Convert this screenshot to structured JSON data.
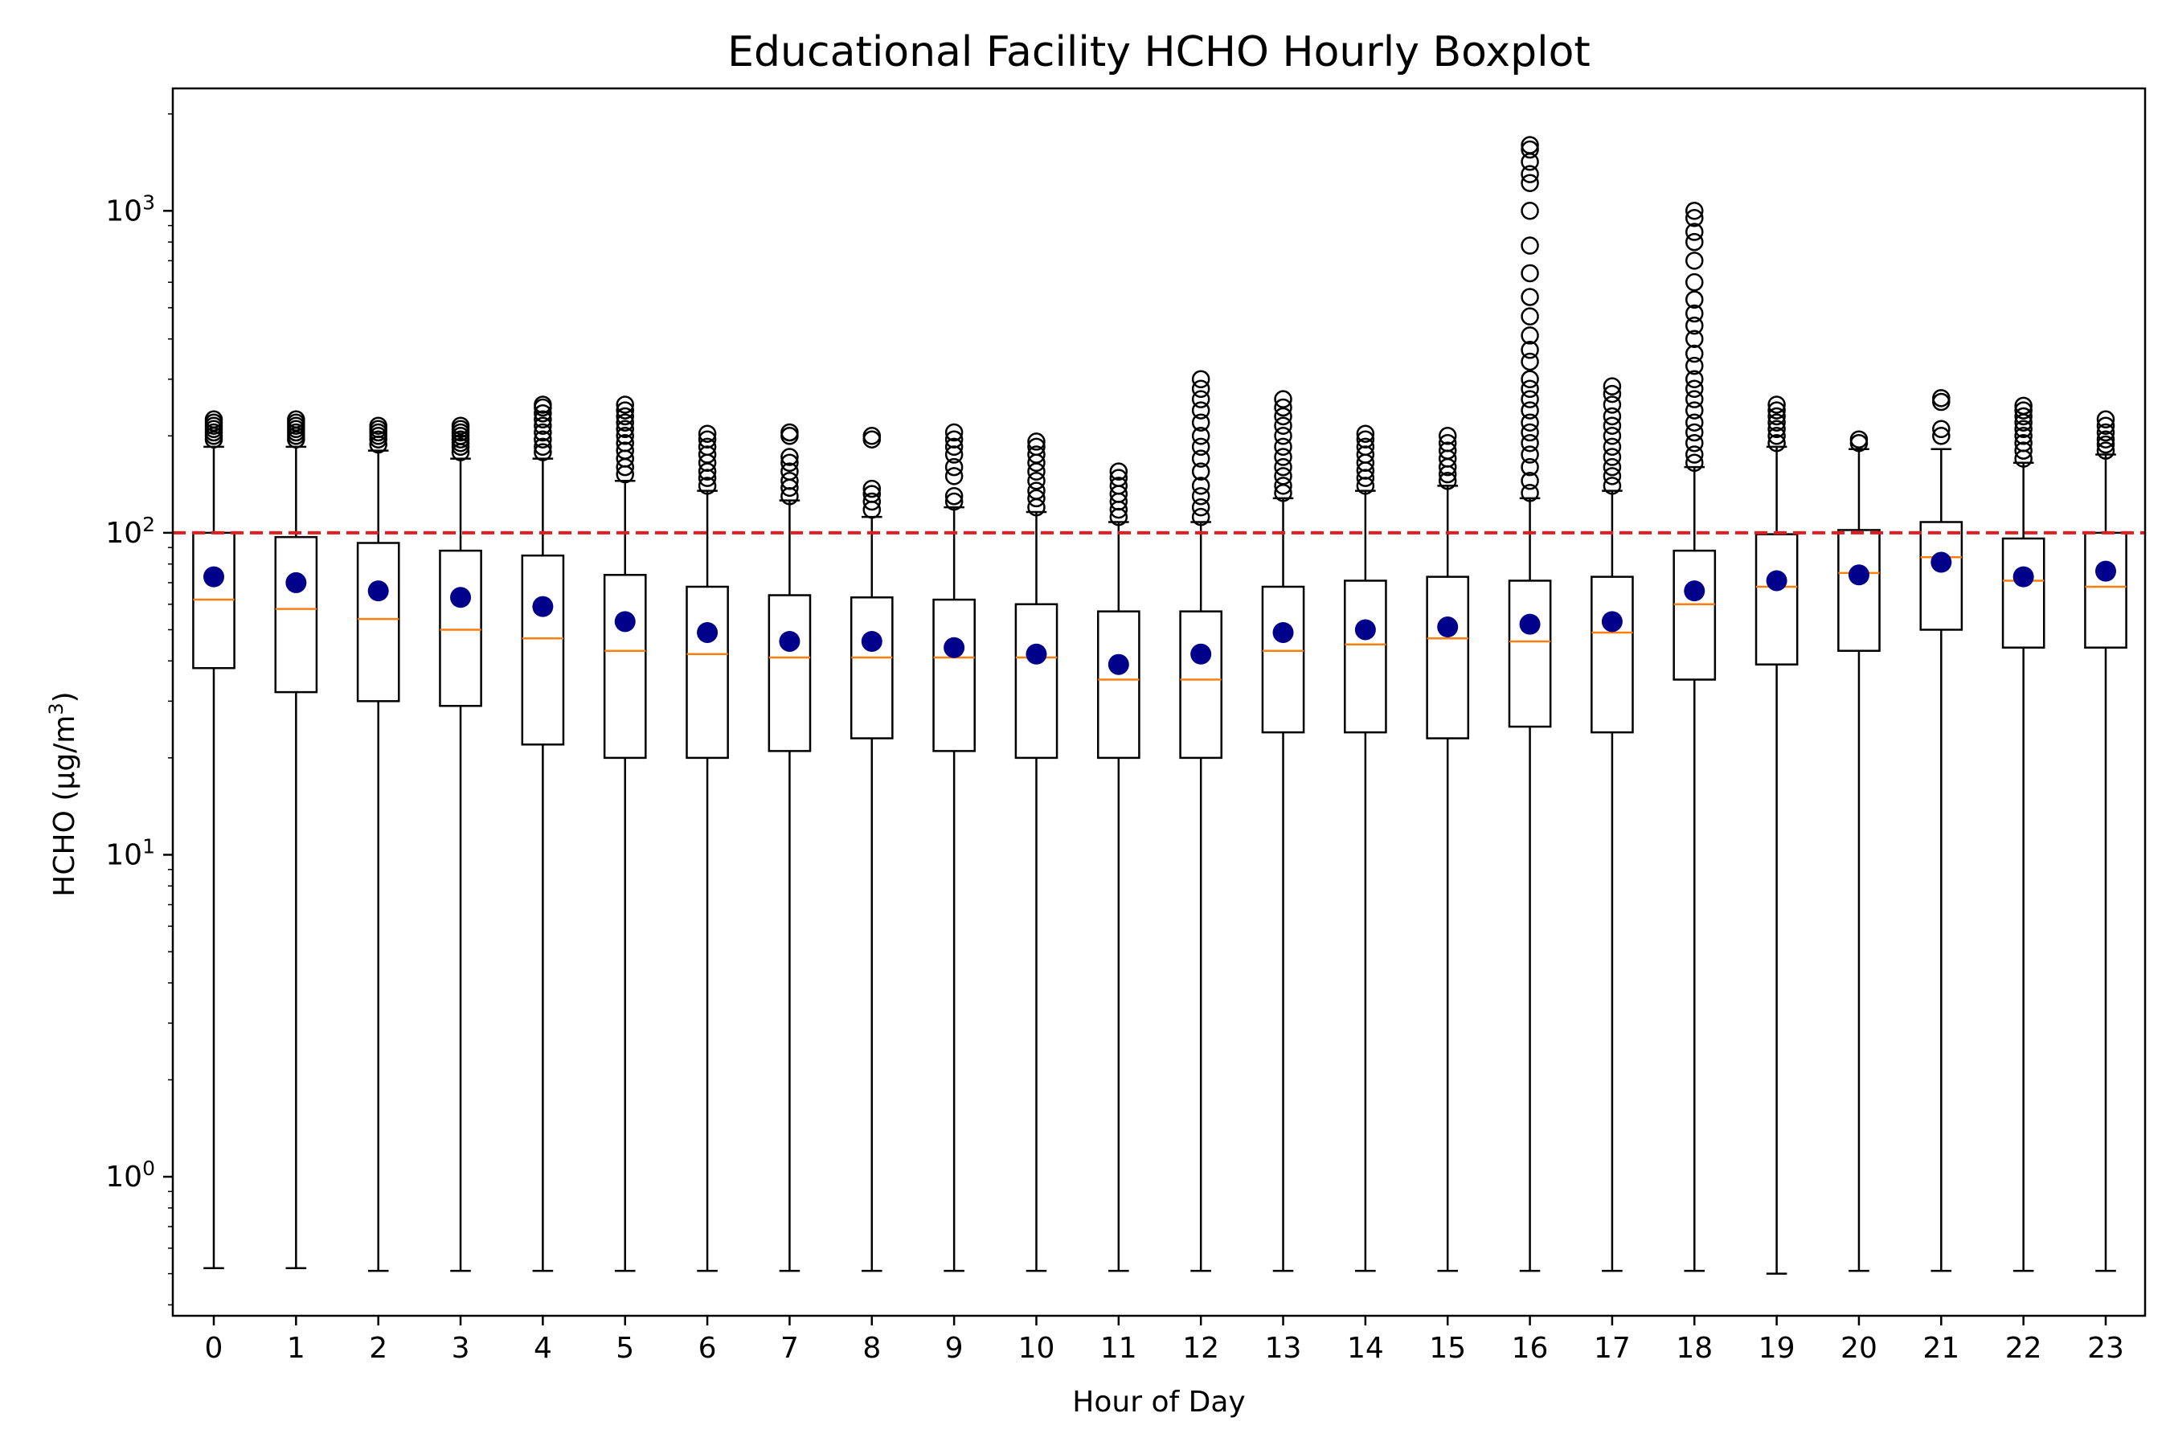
{
  "chart_data": {
    "type": "boxplot",
    "title": "Educational Facility HCHO Hourly Boxplot",
    "xlabel": "Hour of Day",
    "ylabel": "HCHO (μg/m³)",
    "ylabel_parts": {
      "base": "HCHO (μg/m",
      "sup": "3",
      "close": ")"
    },
    "yscale": "log",
    "ylim": [
      0.37,
      2400
    ],
    "y_ticks": [
      {
        "value": 1,
        "base": "10",
        "exp": "0"
      },
      {
        "value": 10,
        "base": "10",
        "exp": "1"
      },
      {
        "value": 100,
        "base": "10",
        "exp": "2"
      },
      {
        "value": 1000,
        "base": "10",
        "exp": "3"
      }
    ],
    "reference_line": {
      "value": 100,
      "color": "#e41a1c",
      "style": "dashed"
    },
    "colors": {
      "median": "#ff7f0e",
      "mean": "#00008b",
      "box": "#000000",
      "outlier": "#000000"
    },
    "categories": [
      "0",
      "1",
      "2",
      "3",
      "4",
      "5",
      "6",
      "7",
      "8",
      "9",
      "10",
      "11",
      "12",
      "13",
      "14",
      "15",
      "16",
      "17",
      "18",
      "19",
      "20",
      "21",
      "22",
      "23"
    ],
    "series": [
      {
        "values": [
          {
            "whislo": 0.52,
            "q1": 38,
            "med": 62,
            "q3": 100,
            "whishi": 185,
            "mean": 73,
            "fliers": [
              195,
              200,
              205,
              210,
              215,
              220,
              225
            ]
          },
          {
            "whislo": 0.52,
            "q1": 32,
            "med": 58,
            "q3": 97,
            "whishi": 185,
            "mean": 70,
            "fliers": [
              195,
              200,
              205,
              210,
              215,
              220,
              225
            ]
          },
          {
            "whislo": 0.51,
            "q1": 30,
            "med": 54,
            "q3": 93,
            "whishi": 180,
            "mean": 66,
            "fliers": [
              188,
              195,
              200,
              205,
              210,
              215
            ]
          },
          {
            "whislo": 0.51,
            "q1": 29,
            "med": 50,
            "q3": 88,
            "whishi": 170,
            "mean": 63,
            "fliers": [
              178,
              185,
              190,
              195,
              200,
              205,
              210,
              215
            ]
          },
          {
            "whislo": 0.51,
            "q1": 22,
            "med": 47,
            "q3": 85,
            "whishi": 170,
            "mean": 59,
            "fliers": [
              178,
              185,
              195,
              205,
              215,
              225,
              235,
              245,
              250
            ]
          },
          {
            "whislo": 0.51,
            "q1": 20,
            "med": 43,
            "q3": 74,
            "whishi": 145,
            "mean": 53,
            "fliers": [
              152,
              160,
              170,
              180,
              190,
              200,
              210,
              220,
              230,
              240,
              250
            ]
          },
          {
            "whislo": 0.51,
            "q1": 20,
            "med": 42,
            "q3": 68,
            "whishi": 135,
            "mean": 49,
            "fliers": [
              140,
              148,
              155,
              165,
              175,
              185,
              195,
              203
            ]
          },
          {
            "whislo": 0.51,
            "q1": 21,
            "med": 41,
            "q3": 64,
            "whishi": 126,
            "mean": 46,
            "fliers": [
              130,
              138,
              145,
              155,
              165,
              172,
              200,
              205
            ]
          },
          {
            "whislo": 0.51,
            "q1": 23,
            "med": 41,
            "q3": 63,
            "whishi": 112,
            "mean": 46,
            "fliers": [
              118,
              125,
              132,
              137,
              195,
              200
            ]
          },
          {
            "whislo": 0.51,
            "q1": 21,
            "med": 41,
            "q3": 62,
            "whishi": 120,
            "mean": 44,
            "fliers": [
              125,
              130,
              150,
              160,
              175,
              185,
              195,
              205
            ]
          },
          {
            "whislo": 0.51,
            "q1": 20,
            "med": 41,
            "q3": 60,
            "whishi": 116,
            "mean": 42,
            "fliers": [
              120,
              128,
              135,
              145,
              155,
              165,
              175,
              185,
              192
            ]
          },
          {
            "whislo": 0.51,
            "q1": 20,
            "med": 35,
            "q3": 57,
            "whishi": 108,
            "mean": 39,
            "fliers": [
              112,
              118,
              125,
              132,
              140,
              148,
              155
            ]
          },
          {
            "whislo": 0.51,
            "q1": 20,
            "med": 35,
            "q3": 57,
            "whishi": 108,
            "mean": 42,
            "fliers": [
              112,
              120,
              130,
              140,
              155,
              170,
              185,
              200,
              220,
              240,
              260,
              280,
              300
            ]
          },
          {
            "whislo": 0.51,
            "q1": 24,
            "med": 43,
            "q3": 68,
            "whishi": 128,
            "mean": 49,
            "fliers": [
              133,
              140,
              150,
              160,
              172,
              185,
              200,
              215,
              230,
              245,
              260
            ]
          },
          {
            "whislo": 0.51,
            "q1": 24,
            "med": 45,
            "q3": 71,
            "whishi": 135,
            "mean": 50,
            "fliers": [
              140,
              148,
              156,
              165,
              175,
              185,
              195,
              203
            ]
          },
          {
            "whislo": 0.51,
            "q1": 23,
            "med": 47,
            "q3": 73,
            "whishi": 140,
            "mean": 51,
            "fliers": [
              145,
              152,
              160,
              170,
              180,
              190,
              200
            ]
          },
          {
            "whislo": 0.51,
            "q1": 25,
            "med": 46,
            "q3": 71,
            "whishi": 128,
            "mean": 52,
            "fliers": [
              133,
              145,
              160,
              175,
              190,
              205,
              220,
              240,
              260,
              280,
              300,
              340,
              370,
              410,
              470,
              540,
              640,
              780,
              1000,
              1220,
              1300,
              1420,
              1550,
              1600
            ]
          },
          {
            "whislo": 0.51,
            "q1": 24,
            "med": 49,
            "q3": 73,
            "whishi": 135,
            "mean": 53,
            "fliers": [
              140,
              150,
              160,
              172,
              185,
              200,
              215,
              230,
              250,
              270,
              285
            ]
          },
          {
            "whislo": 0.51,
            "q1": 35,
            "med": 60,
            "q3": 88,
            "whishi": 160,
            "mean": 66,
            "fliers": [
              165,
              175,
              190,
              205,
              220,
              240,
              260,
              280,
              300,
              330,
              360,
              400,
              440,
              480,
              530,
              600,
              700,
              800,
              860,
              950,
              1000
            ]
          },
          {
            "whislo": 0.5,
            "q1": 39,
            "med": 68,
            "q3": 99,
            "whishi": 185,
            "mean": 71,
            "fliers": [
              190,
              200,
              210,
              220,
              230,
              240,
              250
            ]
          },
          {
            "whislo": 0.51,
            "q1": 43,
            "med": 75,
            "q3": 102,
            "whishi": 182,
            "mean": 74,
            "fliers": [
              190,
              195
            ]
          },
          {
            "whislo": 0.51,
            "q1": 50,
            "med": 84,
            "q3": 108,
            "whishi": 182,
            "mean": 81,
            "fliers": [
              200,
              210,
              255,
              262
            ]
          },
          {
            "whislo": 0.51,
            "q1": 44,
            "med": 71,
            "q3": 96,
            "whishi": 165,
            "mean": 73,
            "fliers": [
              170,
              180,
              190,
              200,
              210,
              220,
              230,
              240,
              248
            ]
          },
          {
            "whislo": 0.51,
            "q1": 44,
            "med": 68,
            "q3": 100,
            "whishi": 175,
            "mean": 76,
            "fliers": [
              180,
              188,
              195,
              205,
              215,
              225
            ]
          }
        ]
      }
    ]
  }
}
